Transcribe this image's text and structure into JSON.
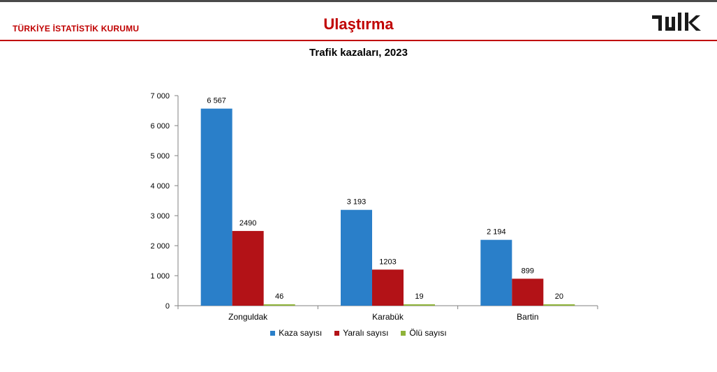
{
  "header": {
    "org_name": "TÜRKİYE İSTATİSTİK KURUMU",
    "section_title": "Ulaştırma",
    "logo_text": "TÜİK",
    "accent_color": "#c00000"
  },
  "chart_data": {
    "type": "bar",
    "title": "Trafik kazaları, 2023",
    "categories": [
      "Zonguldak",
      "Karabük",
      "Bartin"
    ],
    "series": [
      {
        "name": "Kaza sayısı",
        "values": [
          6567,
          3193,
          2194
        ],
        "labels": [
          "6 567",
          "3 193",
          "2 194"
        ],
        "color": "#2a7fc9"
      },
      {
        "name": "Yaralı sayısı",
        "values": [
          2490,
          1203,
          899
        ],
        "labels": [
          "2490",
          "1203",
          "899"
        ],
        "color": "#b31217"
      },
      {
        "name": "Ölü sayısı",
        "values": [
          46,
          19,
          20
        ],
        "labels": [
          "46",
          "19",
          "20"
        ],
        "color": "#8fb33a"
      }
    ],
    "yticks": [
      "0",
      "1 000",
      "2 000",
      "3 000",
      "4 000",
      "5 000",
      "6 000",
      "7 000"
    ],
    "ylim": [
      0,
      7000
    ],
    "xlabel": "",
    "ylabel": "",
    "grid": false,
    "legend": "bottom"
  }
}
